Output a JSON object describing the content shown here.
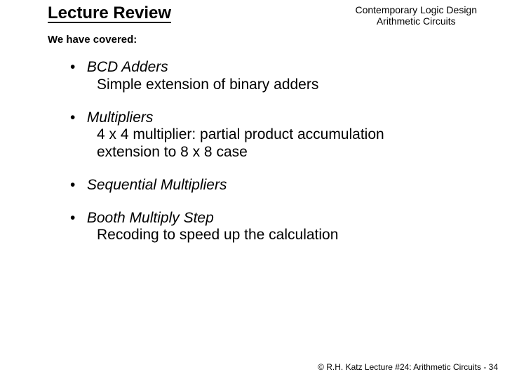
{
  "title": "Lecture Review",
  "header": {
    "line1": "Contemporary Logic Design",
    "line2": "Arithmetic Circuits"
  },
  "subtitle": "We have covered:",
  "items": [
    {
      "head": "BCD Adders",
      "subs": [
        "Simple extension of binary adders"
      ]
    },
    {
      "head": "Multipliers",
      "subs": [
        "4 x 4 multiplier: partial product accumulation",
        "extension to 8 x 8 case"
      ]
    },
    {
      "head": "Sequential Multipliers",
      "subs": []
    },
    {
      "head": "Booth Multiply Step",
      "subs": [
        "Recoding to speed up the calculation"
      ]
    }
  ],
  "footer": "© R.H. Katz   Lecture #24: Arithmetic Circuits - 34"
}
